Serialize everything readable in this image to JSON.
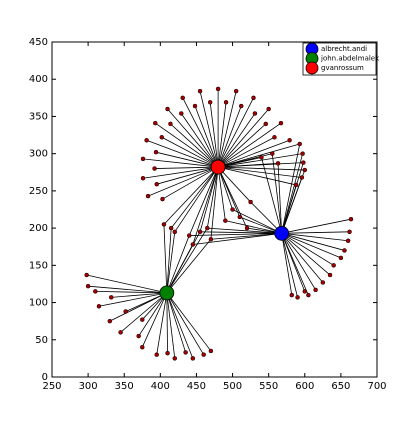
{
  "chart_data": {
    "type": "network",
    "xlim": [
      250,
      700
    ],
    "xticks": [
      250,
      300,
      350,
      400,
      450,
      500,
      550,
      600,
      650,
      700
    ],
    "ylim": [
      0,
      450
    ],
    "yticks": [
      0,
      50,
      100,
      150,
      200,
      250,
      300,
      350,
      400,
      450
    ],
    "legend": "upper right",
    "node_color": "#a00000",
    "nodes": {
      "x": [
        579,
        558,
        567,
        546,
        550,
        531,
        529,
        512,
        505,
        491,
        480,
        469,
        455,
        448,
        431,
        429,
        410,
        414,
        393,
        402,
        381,
        394,
        376,
        392,
        376,
        395,
        383,
        403,
        593,
        597,
        598,
        600,
        596,
        588,
        563,
        555,
        540,
        525,
        510,
        500,
        490,
        520,
        440,
        455,
        470,
        445,
        465,
        405,
        415,
        420,
        298,
        300,
        310,
        315,
        332,
        330,
        345,
        352,
        370,
        375,
        395,
        410,
        420,
        435,
        445,
        460,
        470,
        375,
        664,
        662,
        660,
        655,
        650,
        640,
        635,
        625,
        615,
        605,
        590,
        582,
        600
      ],
      "y": [
        318,
        322,
        341,
        340,
        360,
        354,
        375,
        364,
        384,
        369,
        387,
        369,
        384,
        364,
        375,
        354,
        360,
        340,
        341,
        322,
        318,
        302,
        293,
        280,
        267,
        259,
        243,
        239,
        313,
        300,
        288,
        278,
        268,
        258,
        287,
        300,
        295,
        235,
        215,
        225,
        210,
        200,
        190,
        195,
        185,
        178,
        200,
        205,
        200,
        195,
        137,
        122,
        115,
        95,
        107,
        75,
        60,
        88,
        55,
        40,
        30,
        32,
        25,
        33,
        25,
        30,
        35,
        77,
        212,
        195,
        183,
        170,
        160,
        150,
        137,
        127,
        117,
        110,
        107,
        110,
        115
      ]
    },
    "series": [
      {
        "name": "albrecht.andi",
        "color": "#0000ff",
        "x": [
          568
        ],
        "y": [
          193
        ],
        "neighbors": [
          28,
          29,
          30,
          31,
          32,
          33,
          34,
          35,
          36,
          37,
          38,
          39,
          40,
          41,
          42,
          43,
          44,
          45,
          46,
          68,
          69,
          70,
          71,
          72,
          73,
          74,
          75,
          76,
          77,
          78,
          79,
          80
        ]
      },
      {
        "name": "john.abdelmalek",
        "color": "#008000",
        "x": [
          409
        ],
        "y": [
          113
        ],
        "neighbors": [
          42,
          43,
          44,
          45,
          46,
          47,
          48,
          49,
          50,
          51,
          52,
          53,
          54,
          55,
          56,
          57,
          58,
          59,
          60,
          61,
          62,
          63,
          64,
          65,
          66,
          67
        ]
      },
      {
        "name": "gvanrossum",
        "color": "#ff0000",
        "x": [
          480
        ],
        "y": [
          282
        ],
        "neighbors": [
          0,
          1,
          2,
          3,
          4,
          5,
          6,
          7,
          8,
          9,
          10,
          11,
          12,
          13,
          14,
          15,
          16,
          17,
          18,
          19,
          20,
          21,
          22,
          23,
          24,
          25,
          26,
          27,
          28,
          29,
          30,
          31,
          32,
          33,
          34,
          35,
          36,
          37,
          38,
          39,
          40,
          41,
          42,
          43,
          44,
          45,
          46,
          47,
          48,
          49
        ]
      }
    ]
  }
}
